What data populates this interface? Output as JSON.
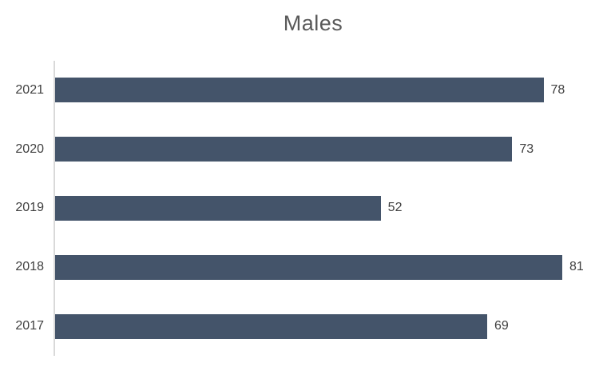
{
  "chart_data": {
    "type": "bar",
    "orientation": "horizontal",
    "title": "Males",
    "categories": [
      "2021",
      "2020",
      "2019",
      "2018",
      "2017"
    ],
    "values": [
      78,
      73,
      52,
      81,
      69
    ],
    "xlabel": "",
    "ylabel": "",
    "grid": false,
    "legend": "none",
    "bar_color": "#44546A",
    "title_color": "#595959",
    "label_color": "#404040",
    "axis_line_color": "#D9D9D9"
  }
}
